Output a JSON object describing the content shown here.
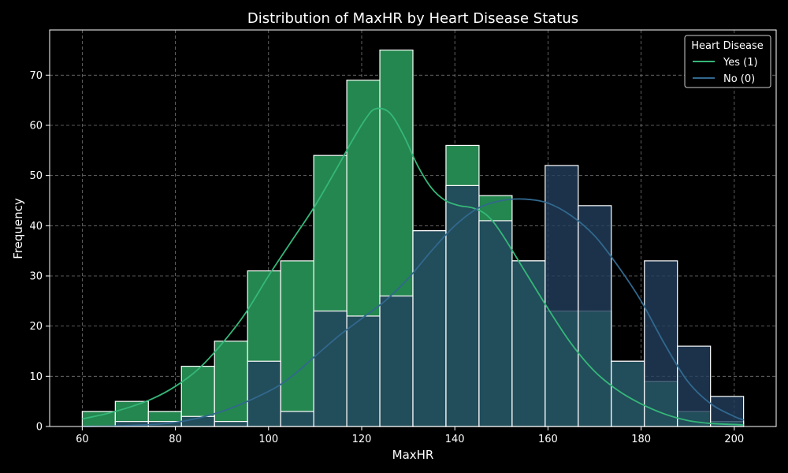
{
  "chart_data": {
    "type": "bar",
    "title": "Distribution of MaxHR by Heart Disease Status",
    "xlabel": "MaxHR",
    "ylabel": "Frequency",
    "xlim": [
      53,
      209
    ],
    "ylim": [
      0,
      79
    ],
    "xticks": [
      60,
      80,
      100,
      120,
      140,
      160,
      180,
      200
    ],
    "yticks": [
      0,
      10,
      20,
      30,
      40,
      50,
      60,
      70
    ],
    "grid": true,
    "legend": {
      "title": "Heart Disease",
      "placement": "top-right"
    },
    "bin_edges": [
      60,
      67.1,
      74.2,
      81.3,
      88.4,
      95.5,
      102.6,
      109.7,
      116.8,
      123.9,
      131.0,
      138.1,
      145.2,
      152.3,
      159.4,
      166.5,
      173.6,
      180.7,
      187.8,
      194.9,
      202
    ],
    "series": [
      {
        "name": "Yes (1)",
        "color": "#35b779",
        "hist_color": "#24874f",
        "values": [
          3,
          5,
          3,
          12,
          17,
          31,
          33,
          54,
          69,
          75,
          39,
          56,
          46,
          33,
          23,
          23,
          13,
          9,
          3,
          1
        ],
        "kde_x": [
          60,
          65,
          70,
          75,
          80,
          85,
          90,
          95,
          100,
          105,
          110,
          115,
          118,
          121,
          123,
          126,
          129,
          132,
          135,
          138,
          141,
          144,
          147,
          150,
          155,
          160,
          165,
          170,
          175,
          180,
          185,
          190,
          195,
          200,
          202
        ],
        "kde_y": [
          1.5,
          2.5,
          3.8,
          5.5,
          8,
          11.5,
          16.5,
          22.5,
          30,
          37,
          44,
          52,
          57,
          61.5,
          63.3,
          62.5,
          58,
          52,
          47.5,
          45,
          44,
          43.5,
          42,
          38.5,
          31,
          23.5,
          16.5,
          11,
          7.2,
          4.5,
          2.5,
          1.2,
          0.6,
          0.4,
          0.3
        ]
      },
      {
        "name": "No (0)",
        "color": "#31688e",
        "hist_color": "#223f5c",
        "values": [
          0,
          1,
          1,
          2,
          1,
          13,
          3,
          23,
          22,
          26,
          39,
          48,
          41,
          33,
          52,
          44,
          13,
          33,
          16,
          6
        ],
        "kde_x": [
          60,
          70,
          80,
          90,
          100,
          105,
          110,
          115,
          120,
          125,
          130,
          135,
          140,
          145,
          150,
          155,
          160,
          165,
          170,
          175,
          180,
          185,
          190,
          195,
          200,
          202
        ],
        "kde_y": [
          0,
          0.2,
          0.8,
          3,
          7,
          10,
          14,
          18,
          21.5,
          25,
          29.5,
          35,
          40,
          43.5,
          45,
          45.3,
          44.5,
          42,
          38,
          32,
          25,
          16.5,
          9,
          4.5,
          2,
          1.3
        ]
      }
    ]
  }
}
